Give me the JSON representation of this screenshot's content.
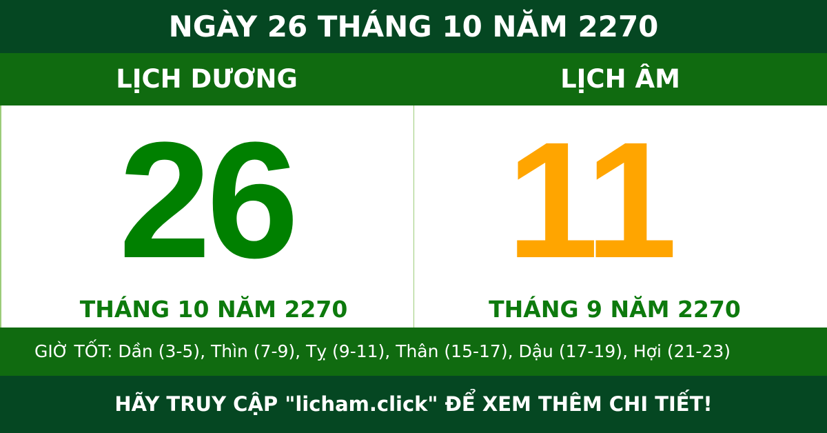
{
  "header": {
    "title": "NGÀY 26 THÁNG 10 NĂM 2270"
  },
  "solar": {
    "label": "LỊCH DƯƠNG",
    "day": "26",
    "month_year": "THÁNG 10 NĂM 2270"
  },
  "lunar": {
    "label": "LỊCH ÂM",
    "day": "11",
    "month_year": "THÁNG 9 NĂM 2270"
  },
  "good_hours": "GIỜ TỐT: Dần (3-5), Thìn (7-9), Tỵ (9-11), Thân (15-17), Dậu (17-19), Hợi (21-23)",
  "footer": "HÃY TRUY CẬP \"licham.click\" ĐỂ XEM THÊM CHI TIẾT!",
  "colors": {
    "dark_green": "#054722",
    "band_green": "#106b10",
    "solar_day": "#008000",
    "lunar_day": "#ffa500"
  }
}
